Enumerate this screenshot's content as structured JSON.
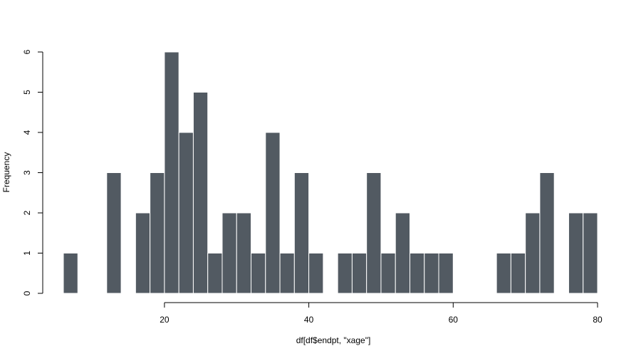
{
  "chart_data": {
    "type": "bar",
    "subtype": "histogram",
    "title": "",
    "xlabel": "df[df$endpt, \"xage\"]",
    "ylabel": "Frequency",
    "bin_width": 2,
    "bins": [
      {
        "start": 6,
        "end": 8,
        "count": 1
      },
      {
        "start": 8,
        "end": 10,
        "count": 0
      },
      {
        "start": 10,
        "end": 12,
        "count": 0
      },
      {
        "start": 12,
        "end": 14,
        "count": 3
      },
      {
        "start": 14,
        "end": 16,
        "count": 0
      },
      {
        "start": 16,
        "end": 18,
        "count": 2
      },
      {
        "start": 18,
        "end": 20,
        "count": 3
      },
      {
        "start": 20,
        "end": 22,
        "count": 6
      },
      {
        "start": 22,
        "end": 24,
        "count": 4
      },
      {
        "start": 24,
        "end": 26,
        "count": 5
      },
      {
        "start": 26,
        "end": 28,
        "count": 1
      },
      {
        "start": 28,
        "end": 30,
        "count": 2
      },
      {
        "start": 30,
        "end": 32,
        "count": 2
      },
      {
        "start": 32,
        "end": 34,
        "count": 1
      },
      {
        "start": 34,
        "end": 36,
        "count": 4
      },
      {
        "start": 36,
        "end": 38,
        "count": 1
      },
      {
        "start": 38,
        "end": 40,
        "count": 3
      },
      {
        "start": 40,
        "end": 42,
        "count": 1
      },
      {
        "start": 42,
        "end": 44,
        "count": 0
      },
      {
        "start": 44,
        "end": 46,
        "count": 1
      },
      {
        "start": 46,
        "end": 48,
        "count": 1
      },
      {
        "start": 48,
        "end": 50,
        "count": 3
      },
      {
        "start": 50,
        "end": 52,
        "count": 1
      },
      {
        "start": 52,
        "end": 54,
        "count": 2
      },
      {
        "start": 54,
        "end": 56,
        "count": 1
      },
      {
        "start": 56,
        "end": 58,
        "count": 1
      },
      {
        "start": 58,
        "end": 60,
        "count": 1
      },
      {
        "start": 60,
        "end": 62,
        "count": 0
      },
      {
        "start": 62,
        "end": 64,
        "count": 0
      },
      {
        "start": 64,
        "end": 66,
        "count": 0
      },
      {
        "start": 66,
        "end": 68,
        "count": 1
      },
      {
        "start": 68,
        "end": 70,
        "count": 1
      },
      {
        "start": 70,
        "end": 72,
        "count": 2
      },
      {
        "start": 72,
        "end": 74,
        "count": 3
      },
      {
        "start": 74,
        "end": 76,
        "count": 0
      },
      {
        "start": 76,
        "end": 78,
        "count": 2
      },
      {
        "start": 78,
        "end": 80,
        "count": 2
      }
    ],
    "xlim": [
      6,
      80
    ],
    "ylim": [
      0,
      6
    ],
    "x_ticks": [
      20,
      40,
      60,
      80
    ],
    "y_ticks": [
      0,
      1,
      2,
      3,
      4,
      5,
      6
    ],
    "bar_color": "#525a62",
    "bar_border_color": "#ffffff",
    "grid": false,
    "legend": "none"
  }
}
